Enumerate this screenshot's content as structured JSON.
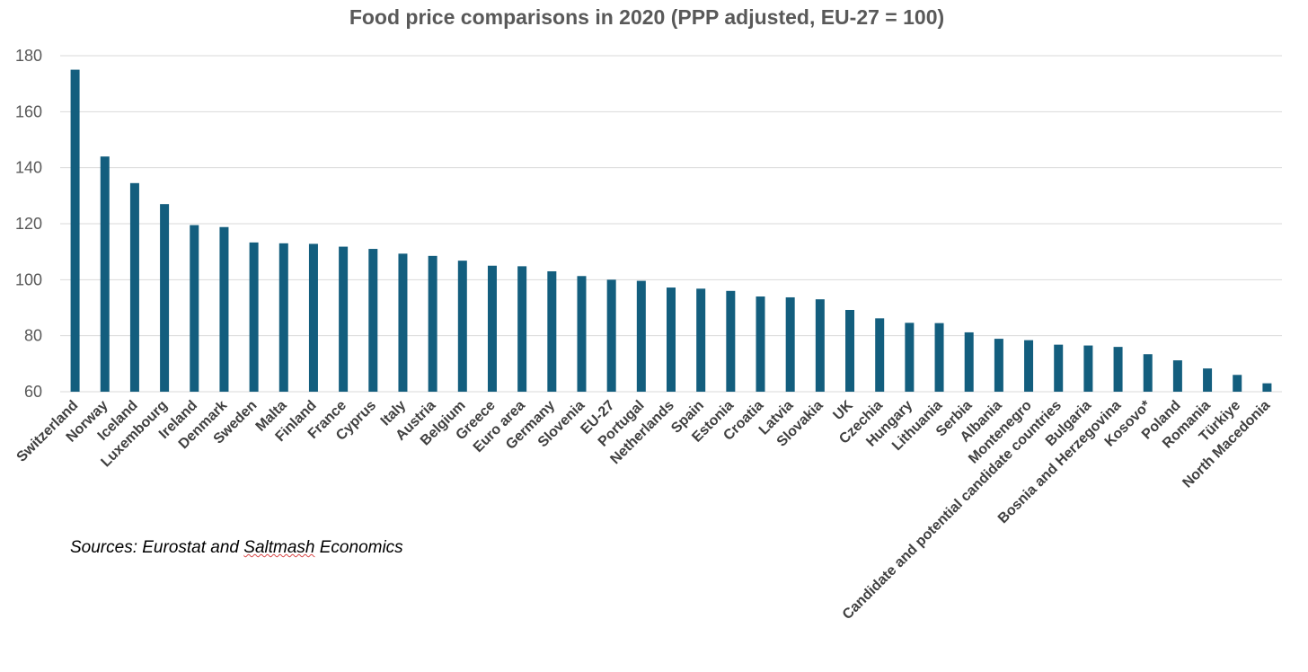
{
  "chart_data": {
    "type": "bar",
    "title": "Food price comparisons in 2020 (PPP adjusted, EU-27 = 100)",
    "xlabel": "",
    "ylabel": "",
    "ylim": [
      60,
      180
    ],
    "yticks": [
      60,
      80,
      100,
      120,
      140,
      160,
      180
    ],
    "grid": true,
    "legend": "none",
    "bar_color": "#135E7E",
    "categories": [
      "Switzerland",
      "Norway",
      "Iceland",
      "Luxembourg",
      "Ireland",
      "Denmark",
      "Sweden",
      "Malta",
      "Finland",
      "France",
      "Cyprus",
      "Italy",
      "Austria",
      "Belgium",
      "Greece",
      "Euro area",
      "Germany",
      "Slovenia",
      "EU-27",
      "Portugal",
      "Netherlands",
      "Spain",
      "Estonia",
      "Croatia",
      "Latvia",
      "Slovakia",
      "UK",
      "Czechia",
      "Hungary",
      "Lithuania",
      "Serbia",
      "Albania",
      "Montenegro",
      "Candidate and potential candidate countries",
      "Bulgaria",
      "Bosnia and Herzegovina",
      "Kosovo*",
      "Poland",
      "Romania",
      "Türkiye",
      "North Macedonia"
    ],
    "values": [
      175,
      144,
      134.5,
      127,
      119.5,
      118.8,
      113.3,
      113,
      112.8,
      111.8,
      111,
      109.3,
      108.5,
      106.8,
      105,
      104.8,
      103,
      101.3,
      100,
      99.6,
      97.2,
      96.8,
      96,
      94,
      93.7,
      93,
      89.2,
      86.2,
      84.6,
      84.5,
      81.2,
      78.9,
      78.4,
      76.8,
      76.5,
      76,
      73.4,
      71.2,
      68.3,
      66,
      63
    ]
  },
  "source": {
    "prefix": "Sources: Eurostat and ",
    "underlined": "Saltmash",
    "suffix": " Economics"
  }
}
